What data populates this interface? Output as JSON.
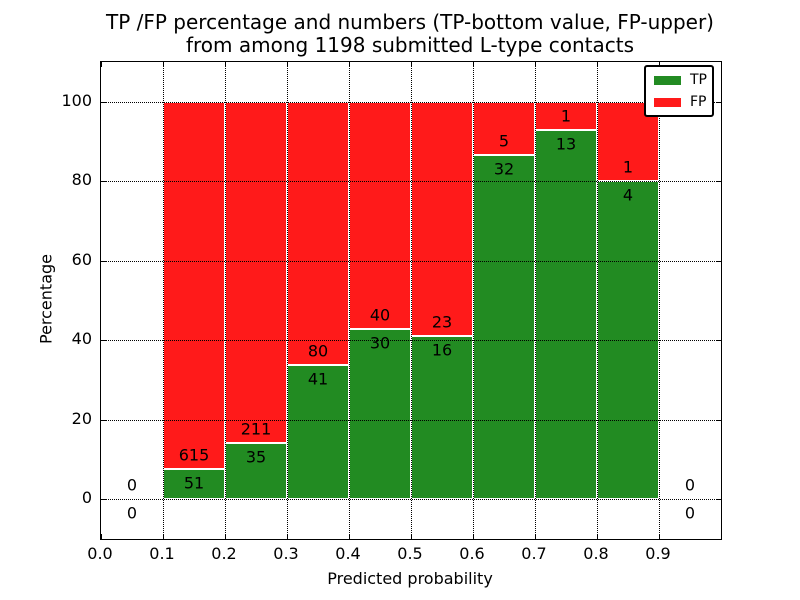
{
  "title": {
    "line1": "TP /FP percentage and numbers (TP-bottom value, FP-upper)",
    "line2": "from among 1198 submitted L-type contacts"
  },
  "axes": {
    "xlabel": "Predicted probability",
    "ylabel": "Percentage"
  },
  "legend": {
    "items": [
      {
        "label": "TP",
        "color": "#228B22"
      },
      {
        "label": "FP",
        "color": "#FF1A1A"
      }
    ]
  },
  "chart_data": {
    "type": "bar",
    "stacked": true,
    "title": "TP /FP percentage and numbers (TP-bottom value, FP-upper)\nfrom among 1198 submitted L-type contacts",
    "xlabel": "Predicted probability",
    "ylabel": "Percentage",
    "xlim": [
      0.0,
      1.0
    ],
    "ylim": [
      -10,
      110
    ],
    "x_ticks": [
      0.0,
      0.1,
      0.2,
      0.3,
      0.4,
      0.5,
      0.6,
      0.7,
      0.8,
      0.9
    ],
    "y_ticks": [
      0,
      20,
      40,
      60,
      80,
      100
    ],
    "grid": "dotted",
    "legend_position": "upper right",
    "series_colors": {
      "tp": "#228B22",
      "fp": "#FF1A1A"
    },
    "total_contacts": 1198,
    "bins": [
      {
        "x0": 0.0,
        "x1": 0.1,
        "tp_count": 0,
        "fp_count": 0,
        "tp_pct": 0,
        "fp_pct": 0
      },
      {
        "x0": 0.1,
        "x1": 0.2,
        "tp_count": 51,
        "fp_count": 615,
        "tp_pct": 7.66,
        "fp_pct": 92.34
      },
      {
        "x0": 0.2,
        "x1": 0.3,
        "tp_count": 35,
        "fp_count": 211,
        "tp_pct": 14.23,
        "fp_pct": 85.77
      },
      {
        "x0": 0.3,
        "x1": 0.4,
        "tp_count": 41,
        "fp_count": 80,
        "tp_pct": 33.88,
        "fp_pct": 66.12
      },
      {
        "x0": 0.4,
        "x1": 0.5,
        "tp_count": 30,
        "fp_count": 40,
        "tp_pct": 42.86,
        "fp_pct": 57.14
      },
      {
        "x0": 0.5,
        "x1": 0.6,
        "tp_count": 16,
        "fp_count": 23,
        "tp_pct": 41.03,
        "fp_pct": 58.97
      },
      {
        "x0": 0.6,
        "x1": 0.7,
        "tp_count": 32,
        "fp_count": 5,
        "tp_pct": 86.49,
        "fp_pct": 13.51
      },
      {
        "x0": 0.7,
        "x1": 0.8,
        "tp_count": 13,
        "fp_count": 1,
        "tp_pct": 92.86,
        "fp_pct": 7.14
      },
      {
        "x0": 0.8,
        "x1": 0.9,
        "tp_count": 4,
        "fp_count": 1,
        "tp_pct": 80.0,
        "fp_pct": 20.0
      },
      {
        "x0": 0.9,
        "x1": 1.0,
        "tp_count": 0,
        "fp_count": 0,
        "tp_pct": 0,
        "fp_pct": 0
      }
    ]
  }
}
